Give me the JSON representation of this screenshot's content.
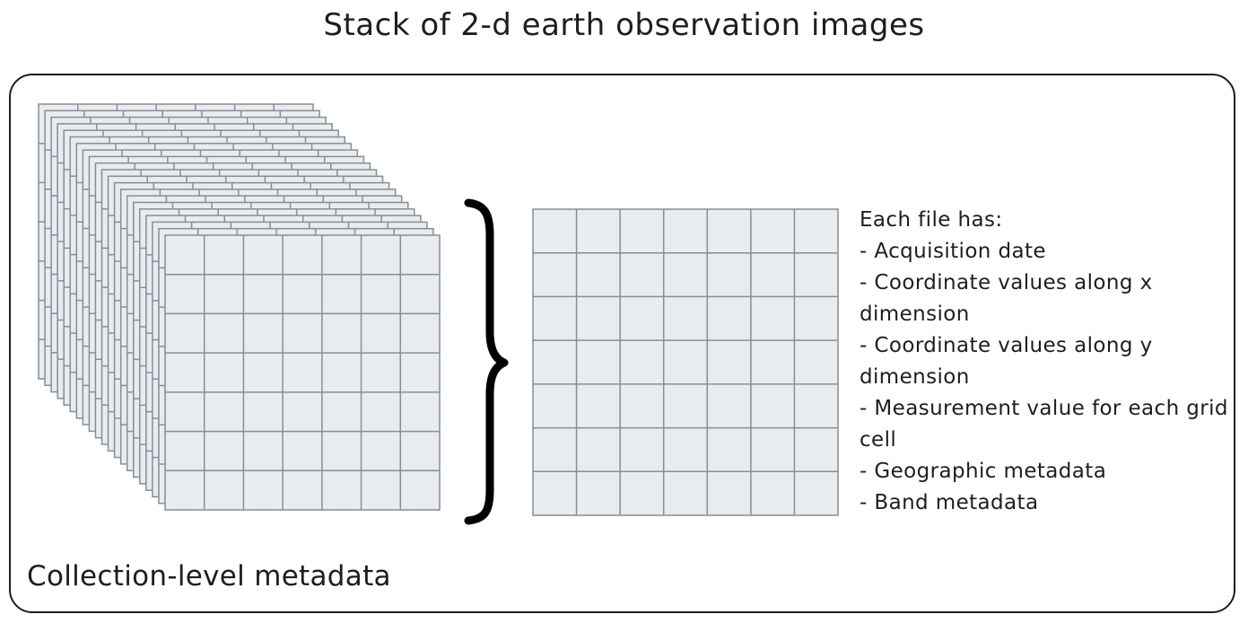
{
  "title": "Stack of 2-d earth observation images",
  "file_info": {
    "heading": "Each file has:",
    "items": [
      "- Acquisition date",
      "- Coordinate values along x dimension",
      "- Coordinate values along y dimension",
      "- Measurement value for each grid cell",
      "- Geographic metadata",
      "- Band metadata"
    ]
  },
  "collection_label": "Collection-level metadata",
  "colors": {
    "cell_fill": "#e9ecef",
    "grid_line": "#868e96",
    "ink": "#1e1e1e"
  },
  "icons": {
    "brace": "curly-brace-icon"
  }
}
